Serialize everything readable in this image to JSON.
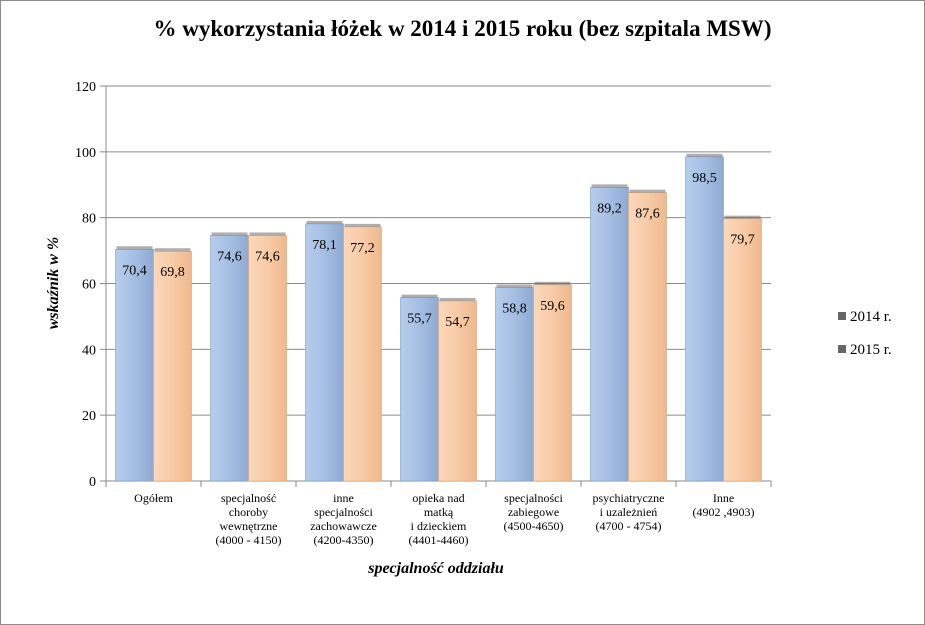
{
  "chart_data": {
    "type": "bar",
    "title": "% wykorzystania łóżek w 2014 i  2015 roku (bez szpitala MSW)",
    "xlabel": "specjalność oddziału",
    "ylabel": "wskaźnik w %",
    "ylim": [
      0,
      120
    ],
    "yticks": [
      0,
      20,
      40,
      60,
      80,
      100,
      120
    ],
    "grid": true,
    "legend_position": "right",
    "categories": [
      [
        "Ogółem"
      ],
      [
        "specjalność",
        "choroby",
        "wewnętrzne",
        "(4000 - 4150)"
      ],
      [
        "inne",
        "specjalności",
        "zachowawcze",
        "(4200-4350)"
      ],
      [
        "opieka nad",
        "matką",
        "i dzieckiem",
        "(4401-4460)"
      ],
      [
        "specjalności",
        "zabiegowe",
        "(4500-4650)"
      ],
      [
        "psychiatryczne",
        "i uzależnień",
        "(4700 - 4754)"
      ],
      [
        "Inne",
        "(4902 ,4903)"
      ]
    ],
    "series": [
      {
        "name": "2014 r.",
        "color": "#a8c0e4",
        "values": [
          70.4,
          74.6,
          78.1,
          55.7,
          58.8,
          89.2,
          98.5
        ],
        "labels": [
          "70,4",
          "74,6",
          "78,1",
          "55,7",
          "58,8",
          "89,2",
          "98,5"
        ]
      },
      {
        "name": "2015 r.",
        "color": "#f8cca8",
        "values": [
          69.8,
          74.6,
          77.2,
          54.7,
          59.6,
          87.6,
          79.7
        ],
        "labels": [
          "69,8",
          "74,6",
          "77,2",
          "54,7",
          "59,6",
          "87,6",
          "79,7"
        ]
      }
    ]
  }
}
